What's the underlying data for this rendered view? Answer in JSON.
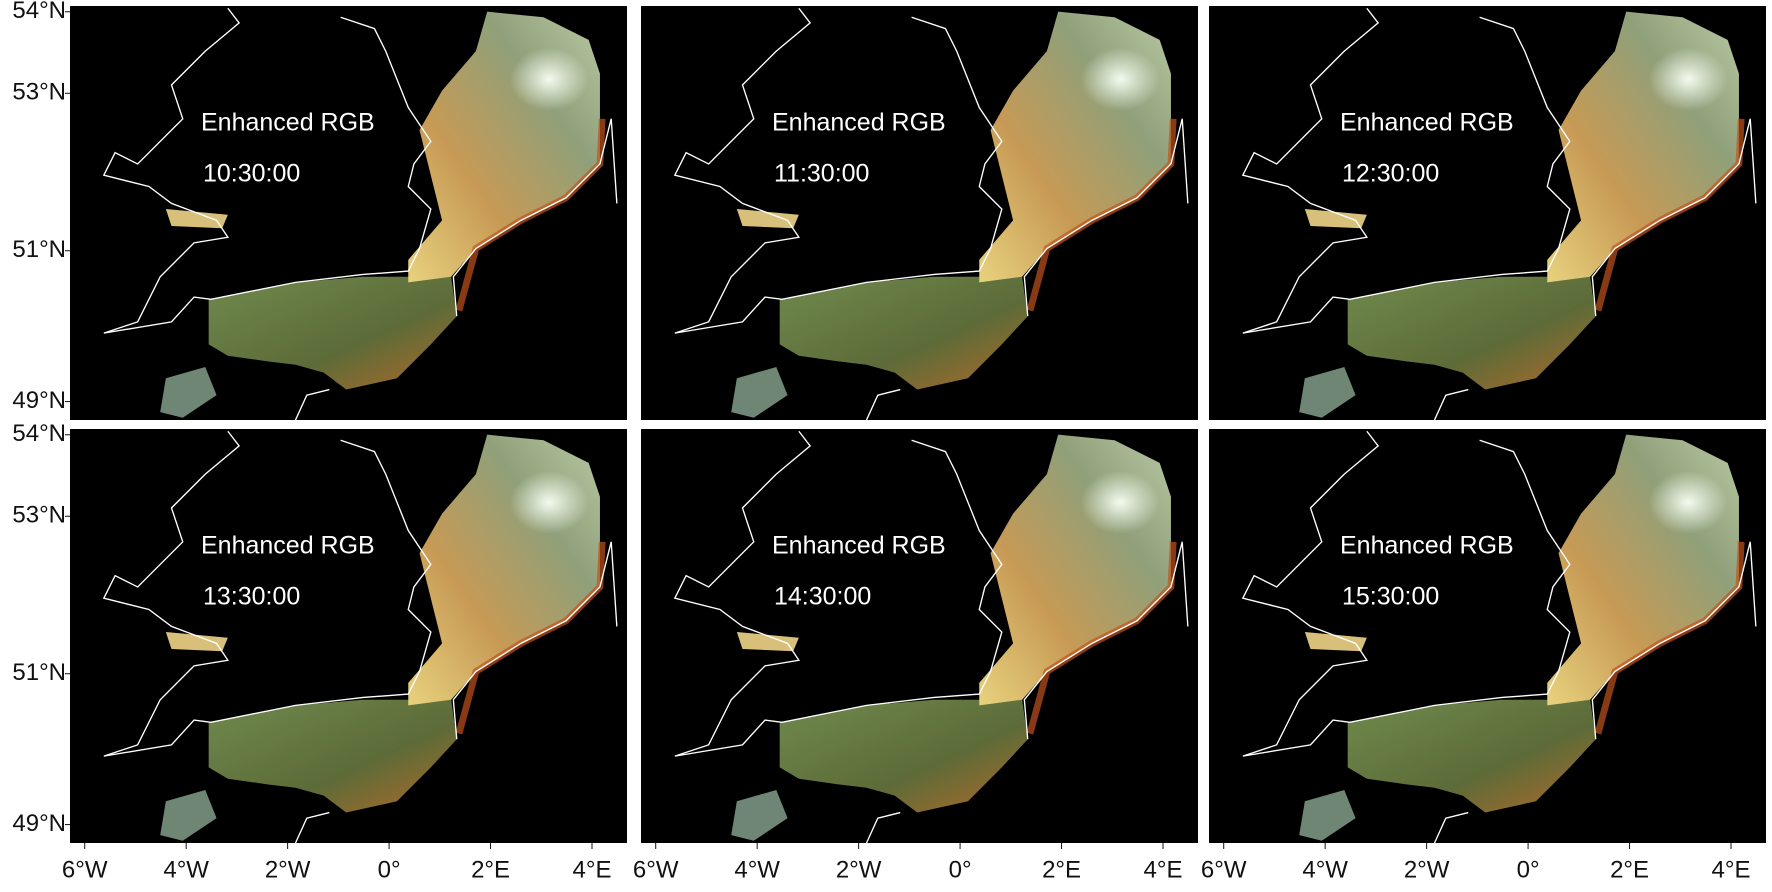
{
  "chart_data": {
    "type": "map",
    "xlim": [
      -6.29,
      4.69
    ],
    "ylim": [
      48.75,
      54.07
    ],
    "xticks": [
      {
        "value": -6,
        "label": "6°W"
      },
      {
        "value": -4,
        "label": "4°W"
      },
      {
        "value": -2,
        "label": "2°W"
      },
      {
        "value": 0,
        "label": "0°"
      },
      {
        "value": 2,
        "label": "2°E"
      },
      {
        "value": 4,
        "label": "4°E"
      }
    ],
    "yticks": [
      {
        "value": 54,
        "label": "54°N"
      },
      {
        "value": 53,
        "label": "53°N"
      },
      {
        "value": 51,
        "label": "51°N"
      },
      {
        "value": 49,
        "label": "49°N"
      }
    ],
    "panels": [
      {
        "title": "Enhanced RGB",
        "time": "10:30:00"
      },
      {
        "title": "Enhanced RGB",
        "time": "11:30:00"
      },
      {
        "title": "Enhanced RGB",
        "time": "12:30:00"
      },
      {
        "title": "Enhanced RGB",
        "time": "13:30:00"
      },
      {
        "title": "Enhanced RGB",
        "time": "14:30:00"
      },
      {
        "title": "Enhanced RGB",
        "time": "15:30:00"
      }
    ]
  }
}
